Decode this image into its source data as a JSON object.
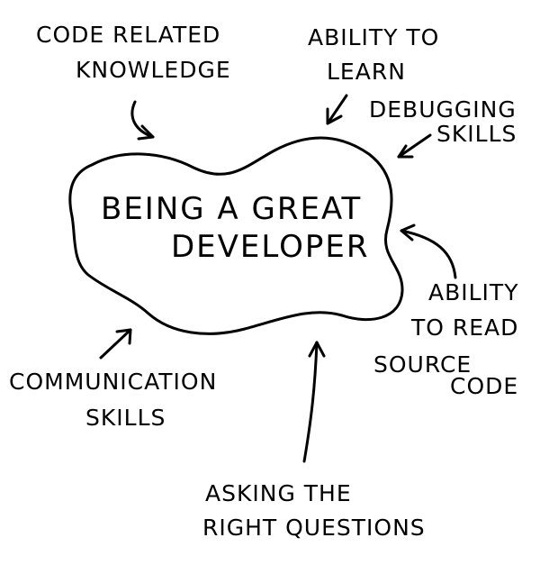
{
  "center": {
    "line1": "BEING A GREAT",
    "line2": "DEVELOPER"
  },
  "labels": {
    "code_knowledge": {
      "line1": "CODE RELATED",
      "line2": "KNOWLEDGE"
    },
    "ability_learn": {
      "line1": "ABILITY TO",
      "line2": "LEARN"
    },
    "debugging": {
      "line1": "DEBUGGING",
      "line2": "SKILLS"
    },
    "read_source": {
      "line1": "ABILITY",
      "line2": "TO READ",
      "line3": "SOURCE",
      "line4": "CODE"
    },
    "communication": {
      "line1": "COMMUNICATION",
      "line2": "SKILLS"
    },
    "questions": {
      "line1": "ASKING THE",
      "line2": "RIGHT QUESTIONS"
    }
  },
  "colors": {
    "ink": "#000000",
    "background": "#ffffff"
  }
}
